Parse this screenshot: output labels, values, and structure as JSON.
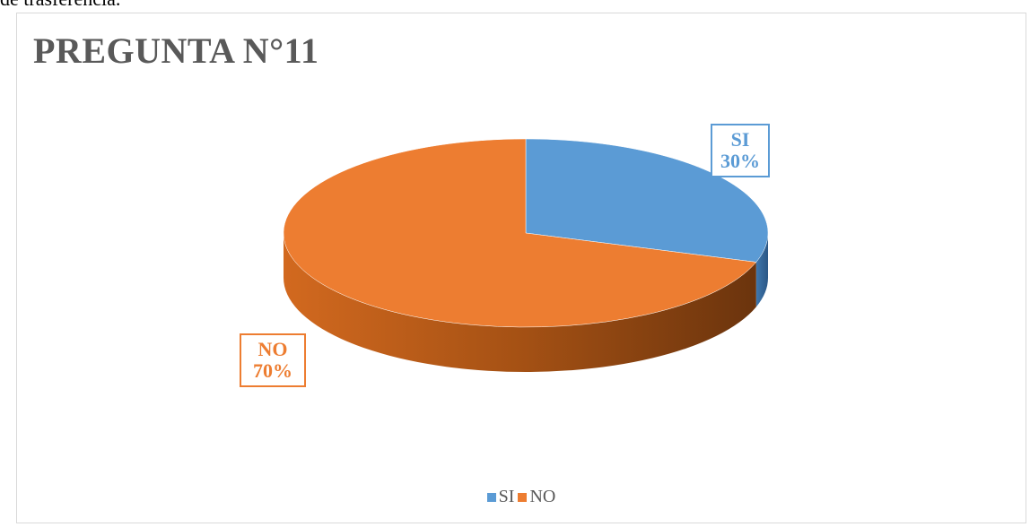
{
  "doc_fragment": "de trasferencia.",
  "chart_data": {
    "type": "pie",
    "title": "PREGUNTA N°11",
    "categories": [
      "SI",
      "NO"
    ],
    "values": [
      30,
      70
    ],
    "labels": [
      "30%",
      "70%"
    ],
    "colors": [
      "#5B9BD5",
      "#ED7D31"
    ],
    "style": "3d",
    "legend": "bottom"
  }
}
